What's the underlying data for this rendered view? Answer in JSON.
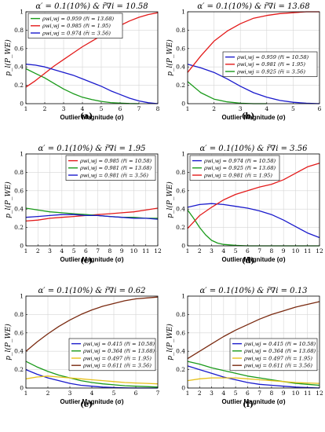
{
  "figure": {
    "y_axis_label": "p_l(P_WE)",
    "x_axis_label": "Outlier Magnitude (σ)"
  },
  "chart_data": [
    {
      "panel": "(a)",
      "type": "line",
      "title": "α′ = 0.1(10%) & r̄∇i = 10.58",
      "xlabel": "Outlier Magnitude (σ)",
      "ylabel": "p_l(P_WE)",
      "xlim": [
        1,
        8
      ],
      "ylim": [
        0,
        1
      ],
      "xticks": [
        1,
        2,
        3,
        4,
        5,
        6,
        7,
        8
      ],
      "yticks": [
        0,
        0.2,
        0.4,
        0.6,
        0.8,
        1
      ],
      "grid": true,
      "legend_position": "top-left",
      "series": [
        {
          "name": "ρwi,wj = 0.959 (r̄i = 13.68)",
          "color": "#1a9a1a",
          "x": [
            1,
            1.5,
            2,
            2.5,
            3,
            3.5,
            4,
            4.5,
            5,
            5.5,
            6,
            6.5,
            7
          ],
          "y": [
            0.38,
            0.33,
            0.28,
            0.22,
            0.16,
            0.11,
            0.07,
            0.045,
            0.025,
            0.012,
            0.006,
            0.002,
            0.0
          ]
        },
        {
          "name": "ρwi,wj = 0.985 (r̄i = 1.95)",
          "color": "#e31a1a",
          "x": [
            1,
            1.5,
            2,
            2.5,
            3,
            3.5,
            4,
            4.5,
            5,
            5.5,
            6,
            6.5,
            7,
            7.5,
            8
          ],
          "y": [
            0.18,
            0.25,
            0.33,
            0.41,
            0.48,
            0.55,
            0.62,
            0.68,
            0.74,
            0.8,
            0.85,
            0.9,
            0.94,
            0.97,
            0.99
          ]
        },
        {
          "name": "ρwi,wj = 0.974 (r̄i = 3.56)",
          "color": "#1a1acc",
          "x": [
            1,
            1.5,
            2,
            2.5,
            3,
            3.5,
            4,
            4.5,
            5,
            5.5,
            6,
            6.5,
            7,
            7.5,
            8
          ],
          "y": [
            0.43,
            0.42,
            0.4,
            0.37,
            0.34,
            0.31,
            0.27,
            0.23,
            0.19,
            0.14,
            0.1,
            0.06,
            0.03,
            0.01,
            0.0
          ]
        }
      ]
    },
    {
      "panel": "(b)",
      "type": "line",
      "title": "α′ = 0.1(10%) & r̄∇i = 13.68",
      "xlabel": "Outlier Magnitude (σ)",
      "ylabel": "p_l(P_WE)",
      "xlim": [
        1,
        6
      ],
      "ylim": [
        0,
        1
      ],
      "xticks": [
        1,
        2,
        3,
        4,
        5,
        6
      ],
      "yticks": [
        0,
        0.2,
        0.4,
        0.6,
        0.8,
        1
      ],
      "grid": true,
      "legend_position": "right",
      "series": [
        {
          "name": "ρwi,wj = 0.959 (r̄i = 10.58)",
          "color": "#1a1acc",
          "x": [
            1,
            1.5,
            2,
            2.5,
            3,
            3.5,
            4,
            4.5,
            5,
            5.5,
            6
          ],
          "y": [
            0.43,
            0.39,
            0.34,
            0.27,
            0.19,
            0.12,
            0.07,
            0.035,
            0.015,
            0.005,
            0.0
          ]
        },
        {
          "name": "ρwi,wj = 0.981 (r̄i = 1.95)",
          "color": "#e31a1a",
          "x": [
            1,
            1.5,
            2,
            2.5,
            3,
            3.5,
            4,
            4.5,
            5,
            5.5,
            6
          ],
          "y": [
            0.34,
            0.52,
            0.68,
            0.79,
            0.87,
            0.93,
            0.96,
            0.98,
            0.99,
            1.0,
            1.0
          ]
        },
        {
          "name": "ρwi,wj = 0.925 (r̄i = 3.56)",
          "color": "#1a9a1a",
          "x": [
            1,
            1.5,
            2,
            2.5,
            3,
            3.5,
            4
          ],
          "y": [
            0.24,
            0.12,
            0.05,
            0.02,
            0.005,
            0.0,
            0.0
          ]
        }
      ]
    },
    {
      "panel": "(c)",
      "type": "line",
      "title": "α′ = 0.1(10%) & r̄∇i = 1.95",
      "xlabel": "Outlier Magnitude (σ)",
      "ylabel": "p_l(P_WE)",
      "xlim": [
        1,
        12
      ],
      "ylim": [
        0,
        1
      ],
      "xticks": [
        1,
        2,
        3,
        4,
        5,
        6,
        7,
        8,
        9,
        10,
        11,
        12
      ],
      "yticks": [
        0,
        0.2,
        0.4,
        0.6,
        0.8,
        1
      ],
      "grid": true,
      "legend_position": "top-right",
      "series": [
        {
          "name": "ρwi,wj = 0.985 (r̄i = 10.58)",
          "color": "#e31a1a",
          "x": [
            1,
            2,
            3,
            4,
            5,
            6,
            7,
            8,
            9,
            10,
            11,
            12
          ],
          "y": [
            0.27,
            0.28,
            0.3,
            0.31,
            0.32,
            0.33,
            0.34,
            0.35,
            0.36,
            0.37,
            0.39,
            0.41
          ]
        },
        {
          "name": "ρwi,wj = 0.981 (r̄i = 13.68)",
          "color": "#1a9a1a",
          "x": [
            1,
            2,
            3,
            4,
            5,
            6,
            7,
            8,
            9,
            10,
            11,
            12
          ],
          "y": [
            0.41,
            0.39,
            0.37,
            0.36,
            0.35,
            0.34,
            0.33,
            0.32,
            0.31,
            0.31,
            0.3,
            0.3
          ]
        },
        {
          "name": "ρwi,wj = 0.981 (r̄i = 3.56)",
          "color": "#1a1acc",
          "x": [
            1,
            2,
            3,
            4,
            5,
            6,
            7,
            8,
            9,
            10,
            11,
            12
          ],
          "y": [
            0.31,
            0.32,
            0.33,
            0.34,
            0.34,
            0.33,
            0.33,
            0.32,
            0.31,
            0.3,
            0.3,
            0.29
          ]
        }
      ]
    },
    {
      "panel": "(d)",
      "type": "line",
      "title": "α′ = 0.1(10%) & r̄∇i = 3.56",
      "xlabel": "Outlier Magnitude (σ)",
      "ylabel": "p_l(P_WE)",
      "xlim": [
        1,
        12
      ],
      "ylim": [
        0,
        1
      ],
      "xticks": [
        1,
        2,
        3,
        4,
        5,
        6,
        7,
        8,
        9,
        10,
        11,
        12
      ],
      "yticks": [
        0,
        0.2,
        0.4,
        0.6,
        0.8,
        1
      ],
      "grid": true,
      "legend_position": "top-left",
      "series": [
        {
          "name": "ρwi,wj = 0.974 (r̄i = 10.58)",
          "color": "#1a1acc",
          "x": [
            1,
            2,
            3,
            4,
            5,
            6,
            7,
            8,
            9,
            10,
            11,
            12
          ],
          "y": [
            0.42,
            0.45,
            0.46,
            0.45,
            0.43,
            0.41,
            0.38,
            0.34,
            0.28,
            0.21,
            0.14,
            0.09
          ]
        },
        {
          "name": "ρwi,wj = 0.925 (r̄i = 13.68)",
          "color": "#1a9a1a",
          "x": [
            1,
            1.5,
            2,
            2.5,
            3,
            3.5,
            4,
            5,
            6,
            7,
            8,
            9,
            10,
            11,
            12
          ],
          "y": [
            0.39,
            0.3,
            0.2,
            0.12,
            0.06,
            0.03,
            0.015,
            0.005,
            0.0,
            0.0,
            0.0,
            0.0,
            0.0,
            0.0,
            0.0
          ]
        },
        {
          "name": "ρwi,wj = 0.981 (r̄i = 1.95)",
          "color": "#e31a1a",
          "x": [
            1,
            2,
            3,
            4,
            5,
            6,
            7,
            8,
            9,
            10,
            11,
            12
          ],
          "y": [
            0.19,
            0.33,
            0.42,
            0.5,
            0.56,
            0.6,
            0.64,
            0.67,
            0.72,
            0.79,
            0.86,
            0.9
          ]
        }
      ]
    },
    {
      "panel": "(e)",
      "type": "line",
      "title": "α′ = 0.1(10%) & r̄∇i = 0.62",
      "xlabel": "Outlier Magnitude (σ)",
      "ylabel": "p_l(P_WE)",
      "xlim": [
        1,
        7
      ],
      "ylim": [
        0,
        1
      ],
      "xticks": [
        1,
        2,
        3,
        4,
        5,
        6,
        7
      ],
      "yticks": [
        0,
        0.2,
        0.4,
        0.6,
        0.8,
        1
      ],
      "grid": true,
      "legend_position": "bottom-right",
      "series": [
        {
          "name": "ρwi,wj = 0.415 (r̄i = 10.58)",
          "color": "#1a1acc",
          "x": [
            1,
            1.5,
            2,
            2.5,
            3,
            3.5,
            4,
            4.5,
            5,
            5.5,
            6,
            6.5,
            7
          ],
          "y": [
            0.2,
            0.15,
            0.11,
            0.08,
            0.05,
            0.03,
            0.02,
            0.01,
            0.005,
            0.002,
            0.0,
            0.0,
            0.0
          ]
        },
        {
          "name": "ρwi,wj = 0.364 (r̄i = 13.68)",
          "color": "#1a9a1a",
          "x": [
            1,
            1.5,
            2,
            2.5,
            3,
            3.5,
            4,
            4.5,
            5,
            5.5,
            6,
            6.5,
            7
          ],
          "y": [
            0.29,
            0.23,
            0.18,
            0.14,
            0.11,
            0.08,
            0.06,
            0.045,
            0.035,
            0.025,
            0.02,
            0.015,
            0.01
          ]
        },
        {
          "name": "ρwi,wj = 0.497 (r̄i = 1.95)",
          "color": "#e6c01a",
          "x": [
            1,
            1.5,
            2,
            2.5,
            3,
            3.5,
            4,
            4.5,
            5,
            5.5,
            6,
            6.5,
            7
          ],
          "y": [
            0.1,
            0.12,
            0.13,
            0.12,
            0.11,
            0.1,
            0.09,
            0.08,
            0.07,
            0.06,
            0.055,
            0.05,
            0.045
          ]
        },
        {
          "name": "ρwi,wj = 0.611 (r̄i = 3.56)",
          "color": "#7a2a10",
          "x": [
            1,
            1.5,
            2,
            2.5,
            3,
            3.5,
            4,
            4.5,
            5,
            5.5,
            6,
            6.5,
            7
          ],
          "y": [
            0.4,
            0.5,
            0.59,
            0.67,
            0.74,
            0.8,
            0.85,
            0.89,
            0.92,
            0.95,
            0.97,
            0.98,
            0.99
          ]
        }
      ]
    },
    {
      "panel": "(f)",
      "type": "line",
      "title": "α′ = 0.1(10%) & r̄∇i = 0.13",
      "xlabel": "Outlier Magnitude (σ)",
      "ylabel": "p_l(P_WE)",
      "xlim": [
        1,
        12
      ],
      "ylim": [
        0,
        1
      ],
      "xticks": [
        1,
        2,
        3,
        4,
        5,
        6,
        7,
        8,
        9,
        10,
        11,
        12
      ],
      "yticks": [
        0,
        0.2,
        0.4,
        0.6,
        0.8,
        1
      ],
      "grid": true,
      "legend_position": "bottom-right",
      "series": [
        {
          "name": "ρwi,wj = 0.415 (r̄i = 10.58)",
          "color": "#1a1acc",
          "x": [
            1,
            2,
            3,
            4,
            5,
            6,
            7,
            8,
            9,
            10,
            11,
            12
          ],
          "y": [
            0.24,
            0.2,
            0.16,
            0.12,
            0.09,
            0.06,
            0.04,
            0.03,
            0.02,
            0.01,
            0.005,
            0.0
          ]
        },
        {
          "name": "ρwi,wj = 0.364 (r̄i = 13.68)",
          "color": "#1a9a1a",
          "x": [
            1,
            2,
            3,
            4,
            5,
            6,
            7,
            8,
            9,
            10,
            11,
            12
          ],
          "y": [
            0.29,
            0.26,
            0.22,
            0.19,
            0.16,
            0.13,
            0.11,
            0.09,
            0.07,
            0.05,
            0.04,
            0.03
          ]
        },
        {
          "name": "ρwi,wj = 0.497 (r̄i = 1.95)",
          "color": "#e6c01a",
          "x": [
            1,
            2,
            3,
            4,
            5,
            6,
            7,
            8,
            9,
            10,
            11,
            12
          ],
          "y": [
            0.08,
            0.1,
            0.11,
            0.11,
            0.11,
            0.1,
            0.09,
            0.08,
            0.07,
            0.06,
            0.055,
            0.05
          ]
        },
        {
          "name": "ρwi,wj = 0.611 (r̄i = 3.56)",
          "color": "#7a2a10",
          "x": [
            1,
            2,
            3,
            4,
            5,
            6,
            7,
            8,
            9,
            10,
            11,
            12
          ],
          "y": [
            0.32,
            0.4,
            0.48,
            0.56,
            0.63,
            0.69,
            0.75,
            0.8,
            0.84,
            0.88,
            0.91,
            0.94
          ]
        }
      ]
    }
  ]
}
